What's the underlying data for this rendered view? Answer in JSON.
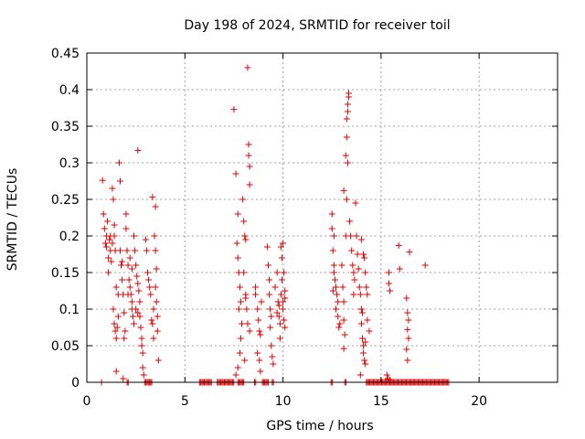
{
  "chart_data": {
    "type": "scatter",
    "title": "Day 198 of 2024, SRMTID for receiver toil",
    "xlabel": "GPS time / hours",
    "ylabel": "SRMTID / TECUs",
    "xlim": [
      0,
      24
    ],
    "ylim": [
      0,
      0.45
    ],
    "x_ticks": [
      0,
      5,
      10,
      15,
      20
    ],
    "y_ticks": [
      0,
      0.05,
      0.1,
      0.15,
      0.2,
      0.25,
      0.3,
      0.35,
      0.4,
      0.45
    ],
    "x_tick_labels": [
      "0",
      "5",
      "10",
      "15",
      "20"
    ],
    "y_tick_labels": [
      "0",
      "0.05",
      "0.1",
      "0.15",
      "0.2",
      "0.25",
      "0.3",
      "0.35",
      "0.4",
      "0.45"
    ],
    "grid": true,
    "marker": "plus",
    "color": "#e00000",
    "series": [
      {
        "points": [
          [
            0.8,
            0.276
          ],
          [
            0.85,
            0.23
          ],
          [
            0.9,
            0.21
          ],
          [
            0.95,
            0.19
          ],
          [
            1.0,
            0.185
          ],
          [
            1.0,
            0.2
          ],
          [
            1.05,
            0.22
          ],
          [
            1.1,
            0.17
          ],
          [
            1.1,
            0.15
          ],
          [
            1.15,
            0.195
          ],
          [
            1.2,
            0.2
          ],
          [
            1.2,
            0.18
          ],
          [
            1.25,
            0.165
          ],
          [
            1.3,
            0.19
          ],
          [
            1.3,
            0.265
          ],
          [
            1.35,
            0.25
          ],
          [
            1.4,
            0.215
          ],
          [
            1.4,
            0.2
          ],
          [
            1.45,
            0.18
          ],
          [
            1.5,
            0.13
          ],
          [
            1.35,
            0.1
          ],
          [
            1.4,
            0.08
          ],
          [
            1.45,
            0.07
          ],
          [
            1.5,
            0.06
          ],
          [
            1.55,
            0.075
          ],
          [
            1.6,
            0.09
          ],
          [
            1.5,
            0.015
          ],
          [
            1.6,
            0.12
          ],
          [
            1.65,
            0.3
          ],
          [
            1.7,
            0.275
          ],
          [
            1.7,
            0.18
          ],
          [
            1.75,
            0.16
          ],
          [
            1.8,
            0.165
          ],
          [
            1.8,
            0.14
          ],
          [
            1.85,
            0.12
          ],
          [
            1.9,
            0.095
          ],
          [
            1.95,
            0.07
          ],
          [
            1.9,
            0.06
          ],
          [
            1.85,
            0.005
          ],
          [
            2.0,
            0.23
          ],
          [
            2.0,
            0.21
          ],
          [
            2.05,
            0.18
          ],
          [
            2.1,
            0.16
          ],
          [
            2.15,
            0.14
          ],
          [
            2.2,
            0.13
          ],
          [
            2.25,
            0.12
          ],
          [
            2.3,
            0.11
          ],
          [
            2.3,
            0.1
          ],
          [
            2.35,
            0.09
          ],
          [
            2.4,
            0.08
          ],
          [
            2.4,
            0.2
          ],
          [
            2.45,
            0.18
          ],
          [
            2.5,
            0.16
          ],
          [
            2.55,
            0.145
          ],
          [
            2.6,
            0.317
          ],
          [
            2.6,
            0.135
          ],
          [
            2.65,
            0.125
          ],
          [
            2.7,
            0.11
          ],
          [
            2.7,
            0.09
          ],
          [
            2.75,
            0.075
          ],
          [
            2.8,
            0.06
          ],
          [
            2.8,
            0.05
          ],
          [
            2.85,
            0.04
          ],
          [
            2.85,
            0.02
          ],
          [
            2.9,
            0.01
          ],
          [
            2.3,
            0.155
          ],
          [
            2.2,
            0.17
          ],
          [
            2.1,
            0.12
          ],
          [
            2.5,
            0.1
          ],
          [
            2.6,
            0.095
          ],
          [
            3.0,
            0.195
          ],
          [
            3.05,
            0.18
          ],
          [
            3.1,
            0.15
          ],
          [
            3.15,
            0.14
          ],
          [
            3.2,
            0.13
          ],
          [
            3.25,
            0.12
          ],
          [
            3.3,
            0.085
          ],
          [
            3.35,
            0.08
          ],
          [
            3.4,
            0.06
          ],
          [
            3.35,
            0.253
          ],
          [
            3.5,
            0.24
          ],
          [
            3.45,
            0.2
          ],
          [
            3.5,
            0.18
          ],
          [
            3.55,
            0.155
          ],
          [
            3.5,
            0.13
          ],
          [
            3.55,
            0.11
          ],
          [
            3.6,
            0.09
          ],
          [
            3.6,
            0.07
          ],
          [
            3.65,
            0.03
          ],
          [
            3.4,
            0.1
          ],
          [
            7.5,
            0.373
          ],
          [
            7.6,
            0.285
          ],
          [
            7.7,
            0.23
          ],
          [
            7.65,
            0.19
          ],
          [
            7.7,
            0.17
          ],
          [
            7.75,
            0.15
          ],
          [
            7.8,
            0.13
          ],
          [
            7.85,
            0.11
          ],
          [
            7.75,
            0.1
          ],
          [
            7.9,
            0.08
          ],
          [
            7.85,
            0.06
          ],
          [
            7.8,
            0.04
          ],
          [
            7.7,
            0.02
          ],
          [
            7.6,
            0.01
          ],
          [
            7.95,
            0.25
          ],
          [
            8.0,
            0.22
          ],
          [
            8.05,
            0.2
          ],
          [
            8.1,
            0.195
          ],
          [
            8.0,
            0.15
          ],
          [
            8.1,
            0.12
          ],
          [
            8.15,
            0.1
          ],
          [
            8.2,
            0.08
          ],
          [
            8.05,
            0.03
          ],
          [
            8.2,
            0.43
          ],
          [
            8.25,
            0.325
          ],
          [
            8.25,
            0.31
          ],
          [
            8.3,
            0.295
          ],
          [
            8.3,
            0.27
          ],
          [
            8.1,
            0.115
          ],
          [
            8.3,
            0.07
          ],
          [
            8.6,
            0.12
          ],
          [
            8.7,
            0.1
          ],
          [
            8.75,
            0.085
          ],
          [
            8.8,
            0.07
          ],
          [
            8.85,
            0.065
          ],
          [
            8.7,
            0.04
          ],
          [
            8.8,
            0.03
          ],
          [
            8.85,
            0.015
          ],
          [
            8.9,
            0.11
          ],
          [
            8.6,
            0.13
          ],
          [
            9.2,
            0.185
          ],
          [
            9.25,
            0.16
          ],
          [
            9.3,
            0.14
          ],
          [
            9.3,
            0.12
          ],
          [
            9.35,
            0.1
          ],
          [
            9.4,
            0.09
          ],
          [
            9.35,
            0.075
          ],
          [
            9.4,
            0.05
          ],
          [
            9.45,
            0.035
          ],
          [
            9.5,
            0.025
          ],
          [
            9.6,
            0.13
          ],
          [
            9.7,
            0.15
          ],
          [
            9.75,
            0.11
          ],
          [
            9.8,
            0.09
          ],
          [
            9.85,
            0.08
          ],
          [
            9.9,
            0.185
          ],
          [
            9.95,
            0.17
          ],
          [
            10.0,
            0.19
          ],
          [
            10.05,
            0.15
          ],
          [
            10.1,
            0.125
          ],
          [
            10.0,
            0.1
          ],
          [
            10.05,
            0.085
          ],
          [
            10.1,
            0.075
          ],
          [
            9.9,
            0.12
          ],
          [
            9.95,
            0.14
          ],
          [
            10.0,
            0.11
          ],
          [
            9.8,
            0.105
          ],
          [
            10.1,
            0.115
          ],
          [
            9.7,
            0.095
          ],
          [
            9.85,
            0.06
          ],
          [
            12.5,
            0.23
          ],
          [
            12.6,
            0.2
          ],
          [
            12.55,
            0.18
          ],
          [
            12.6,
            0.16
          ],
          [
            12.65,
            0.14
          ],
          [
            12.7,
            0.13
          ],
          [
            12.75,
            0.12
          ],
          [
            12.8,
            0.11
          ],
          [
            12.7,
            0.1
          ],
          [
            12.8,
            0.09
          ],
          [
            12.85,
            0.075
          ],
          [
            12.9,
            0.08
          ],
          [
            13.0,
            0.16
          ],
          [
            13.05,
            0.13
          ],
          [
            13.1,
            0.11
          ],
          [
            13.1,
            0.085
          ],
          [
            13.15,
            0.065
          ],
          [
            13.1,
            0.046
          ],
          [
            13.2,
            0.2
          ],
          [
            13.25,
            0.25
          ],
          [
            13.1,
            0.262
          ],
          [
            13.2,
            0.31
          ],
          [
            13.25,
            0.335
          ],
          [
            13.25,
            0.36
          ],
          [
            13.3,
            0.37
          ],
          [
            13.3,
            0.38
          ],
          [
            13.35,
            0.39
          ],
          [
            13.35,
            0.395
          ],
          [
            13.3,
            0.3
          ],
          [
            13.4,
            0.22
          ],
          [
            13.45,
            0.2
          ],
          [
            13.5,
            0.18
          ],
          [
            13.55,
            0.16
          ],
          [
            13.6,
            0.15
          ],
          [
            13.65,
            0.14
          ],
          [
            13.6,
            0.12
          ],
          [
            13.7,
            0.245
          ],
          [
            13.75,
            0.2
          ],
          [
            13.8,
            0.175
          ],
          [
            13.85,
            0.155
          ],
          [
            13.9,
            0.13
          ],
          [
            13.95,
            0.12
          ],
          [
            14.0,
            0.1
          ],
          [
            14.0,
            0.08
          ],
          [
            14.05,
            0.06
          ],
          [
            14.1,
            0.05
          ],
          [
            14.1,
            0.04
          ],
          [
            14.15,
            0.03
          ],
          [
            14.2,
            0.025
          ],
          [
            14.05,
            0.095
          ],
          [
            14.0,
            0.195
          ],
          [
            14.1,
            0.175
          ],
          [
            14.15,
            0.17
          ],
          [
            14.2,
            0.15
          ],
          [
            14.25,
            0.13
          ],
          [
            14.3,
            0.12
          ],
          [
            14.3,
            0.085
          ],
          [
            14.2,
            0.055
          ],
          [
            14.4,
            0.07
          ],
          [
            13.95,
            0.01
          ],
          [
            15.3,
            0.01
          ],
          [
            15.35,
            0.005
          ],
          [
            15.4,
            0.135
          ],
          [
            15.45,
            0.125
          ],
          [
            15.45,
            0.003
          ],
          [
            15.9,
            0.187
          ],
          [
            15.95,
            0.155
          ],
          [
            15.4,
            0.15
          ],
          [
            16.3,
            0.115
          ],
          [
            16.35,
            0.095
          ],
          [
            16.4,
            0.085
          ],
          [
            16.35,
            0.072
          ],
          [
            16.4,
            0.06
          ],
          [
            16.3,
            0.045
          ],
          [
            16.35,
            0.03
          ],
          [
            16.45,
            0.178
          ],
          [
            17.25,
            0.16
          ],
          [
            12.5,
            0.21
          ],
          [
            12.6,
            0.15
          ],
          [
            12.55,
            0.125
          ]
        ]
      }
    ],
    "zero_band": [
      [
        0.75,
        0.8
      ],
      [
        2.05,
        2.15
      ],
      [
        2.95,
        3.35
      ],
      [
        5.75,
        6.4
      ],
      [
        6.65,
        7.5
      ],
      [
        7.7,
        8.05
      ],
      [
        8.55,
        8.65
      ],
      [
        8.95,
        9.25
      ],
      [
        9.45,
        9.55
      ],
      [
        12.45,
        12.55
      ],
      [
        13.15,
        13.25
      ],
      [
        14.25,
        18.5
      ]
    ]
  }
}
